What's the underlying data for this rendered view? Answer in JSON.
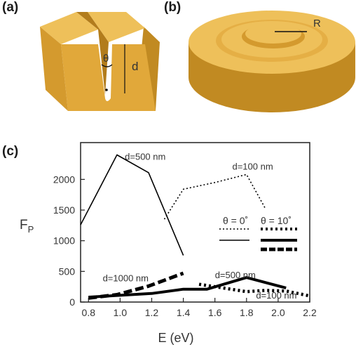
{
  "panels": {
    "a": {
      "label": "(a)",
      "angle_symbol": "θ",
      "depth_symbol": "d"
    },
    "b": {
      "label": "(b)",
      "radius_symbol": "R"
    },
    "c": {
      "label": "(c)"
    }
  },
  "colors": {
    "gold_front": "#E1A83A",
    "gold_top": "#EEC05A",
    "gold_side": "#C18A22",
    "gold_groove": "#B27C1C",
    "line": "#000000"
  },
  "chart_data": {
    "type": "line",
    "xlabel": "E (eV)",
    "ylabel": "F",
    "ylabel_sub": "P",
    "xlim": [
      0.75,
      2.2
    ],
    "ylim": [
      0,
      2600
    ],
    "xticks": [
      0.8,
      1.0,
      1.2,
      1.4,
      1.6,
      1.8,
      2.0,
      2.2
    ],
    "xtick_labels": [
      "0.8",
      "1.0",
      "1.2",
      "1.4",
      "1.6",
      "1.8",
      "2.0",
      "2.2"
    ],
    "yticks": [
      0,
      500,
      1000,
      1500,
      2000
    ],
    "ytick_labels": [
      "0",
      "500",
      "1000",
      "1500",
      "2000"
    ],
    "legend": {
      "header_0": "θ = 0˚",
      "header_10": "θ = 10˚",
      "placement": "right"
    },
    "annotations": [
      {
        "text": "d=500 nm",
        "x": 1.03,
        "y": 2320
      },
      {
        "text": "d=100 nm",
        "x": 1.71,
        "y": 2160
      },
      {
        "text": "d=1000 nm",
        "x": 0.89,
        "y": 340
      },
      {
        "text": "d=500 nm",
        "x": 1.6,
        "y": 390
      },
      {
        "text": "d=100 nm",
        "x": 1.86,
        "y": 60
      }
    ],
    "series": [
      {
        "style": "thin-solid",
        "theta": 0,
        "x": [
          0.75,
          0.98,
          1.18,
          1.4
        ],
        "y": [
          1260,
          2400,
          2110,
          760
        ]
      },
      {
        "style": "thin-dotted",
        "theta": 0,
        "x": [
          1.28,
          1.4,
          1.6,
          1.8,
          1.92
        ],
        "y": [
          1350,
          1840,
          1950,
          2080,
          1520
        ]
      },
      {
        "style": "thick-dashed",
        "theta": 10,
        "x": [
          0.8,
          0.98,
          1.18,
          1.4
        ],
        "y": [
          65,
          120,
          260,
          470
        ]
      },
      {
        "style": "thick-solid",
        "theta": 10,
        "x": [
          0.8,
          1.0,
          1.2,
          1.4,
          1.55,
          1.8,
          2.05
        ],
        "y": [
          80,
          110,
          140,
          210,
          210,
          400,
          230
        ]
      },
      {
        "style": "thick-dotted",
        "theta": 10,
        "x": [
          1.5,
          1.65,
          1.8,
          1.92,
          2.05,
          2.2
        ],
        "y": [
          290,
          230,
          170,
          190,
          180,
          100
        ]
      }
    ]
  }
}
